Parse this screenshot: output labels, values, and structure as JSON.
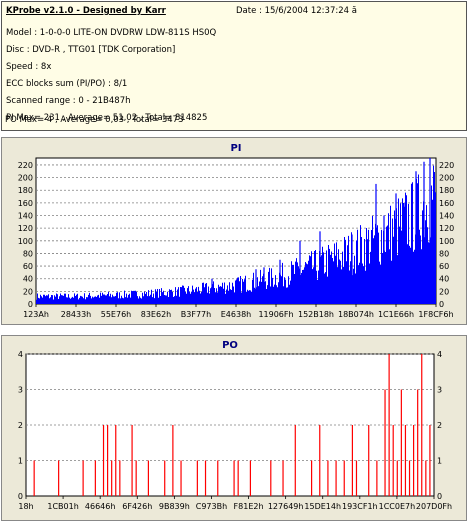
{
  "header": {
    "title": "KProbe v2.1.0 - Designed by Karr",
    "date": "Date : 15/6/2004 12:37:24 ă",
    "lines": [
      "Model : 1-0-0-0 LITE-ON DVDRW LDW-811S   HS0Q",
      "Disc : DVD-R , TTG01 [TDK Corporation]",
      "Speed : 8x",
      "ECC blocks sum (PI/PO) : 8/1",
      "Scanned range : 0 - 21B487h",
      "PI Max= 231 , Average= 51,02 , Total= 814825",
      "PO Max= 4 , Average= 0,03 , Total= 3473"
    ]
  },
  "chart_data": [
    {
      "type": "bar",
      "title": "PI",
      "xticks": [
        "123Ah",
        "28433h",
        "55E76h",
        "83E62h",
        "B3F77h",
        "E4638h",
        "11906Fh",
        "152B18h",
        "18B074h",
        "1C1E66h",
        "1F8CF6h"
      ],
      "yticks": [
        0,
        20,
        40,
        60,
        80,
        100,
        120,
        140,
        160,
        180,
        200,
        220
      ],
      "ylim": [
        0,
        231
      ],
      "grid": true,
      "color": "#0000ff",
      "trend": [
        [
          0,
          12
        ],
        [
          0.1,
          12
        ],
        [
          0.2,
          14
        ],
        [
          0.3,
          17
        ],
        [
          0.4,
          22
        ],
        [
          0.5,
          30
        ],
        [
          0.6,
          42
        ],
        [
          0.7,
          60
        ],
        [
          0.8,
          85
        ],
        [
          0.9,
          118
        ],
        [
          0.95,
          140
        ],
        [
          1.0,
          175
        ]
      ],
      "spikes": [
        [
          0.44,
          40
        ],
        [
          0.55,
          55
        ],
        [
          0.57,
          58
        ],
        [
          0.61,
          70
        ],
        [
          0.66,
          100
        ],
        [
          0.71,
          115
        ],
        [
          0.79,
          110
        ],
        [
          0.85,
          190
        ],
        [
          0.87,
          140
        ],
        [
          0.9,
          175
        ],
        [
          0.92,
          160
        ],
        [
          0.95,
          210
        ],
        [
          0.97,
          225
        ],
        [
          0.985,
          231
        ]
      ]
    },
    {
      "type": "bar",
      "title": "PO",
      "xticks": [
        "18h",
        "1CB01h",
        "46646h",
        "6F426h",
        "9B839h",
        "C973Bh",
        "F81E2h",
        "127649h",
        "15DE14h",
        "193CF1h",
        "1CC0E7h",
        "207D0Fh"
      ],
      "yticks": [
        0,
        1,
        2,
        3,
        4
      ],
      "ylim": [
        0,
        4
      ],
      "grid": true,
      "color": "#ff0000",
      "events": [
        [
          0.02,
          1
        ],
        [
          0.08,
          1
        ],
        [
          0.14,
          1
        ],
        [
          0.17,
          1
        ],
        [
          0.19,
          2
        ],
        [
          0.2,
          2
        ],
        [
          0.21,
          1
        ],
        [
          0.22,
          2
        ],
        [
          0.23,
          1
        ],
        [
          0.26,
          2
        ],
        [
          0.27,
          1
        ],
        [
          0.3,
          1
        ],
        [
          0.34,
          1
        ],
        [
          0.36,
          2
        ],
        [
          0.38,
          1
        ],
        [
          0.42,
          1
        ],
        [
          0.44,
          1
        ],
        [
          0.47,
          1
        ],
        [
          0.51,
          1
        ],
        [
          0.52,
          1
        ],
        [
          0.55,
          1
        ],
        [
          0.6,
          1
        ],
        [
          0.63,
          1
        ],
        [
          0.66,
          2
        ],
        [
          0.7,
          1
        ],
        [
          0.72,
          2
        ],
        [
          0.74,
          1
        ],
        [
          0.76,
          1
        ],
        [
          0.78,
          1
        ],
        [
          0.8,
          2
        ],
        [
          0.81,
          1
        ],
        [
          0.84,
          2
        ],
        [
          0.86,
          1
        ],
        [
          0.88,
          3
        ],
        [
          0.89,
          4
        ],
        [
          0.9,
          2
        ],
        [
          0.91,
          1
        ],
        [
          0.92,
          3
        ],
        [
          0.93,
          2
        ],
        [
          0.94,
          1
        ],
        [
          0.95,
          2
        ],
        [
          0.96,
          3
        ],
        [
          0.97,
          4
        ],
        [
          0.98,
          1
        ],
        [
          0.99,
          2
        ]
      ]
    }
  ]
}
